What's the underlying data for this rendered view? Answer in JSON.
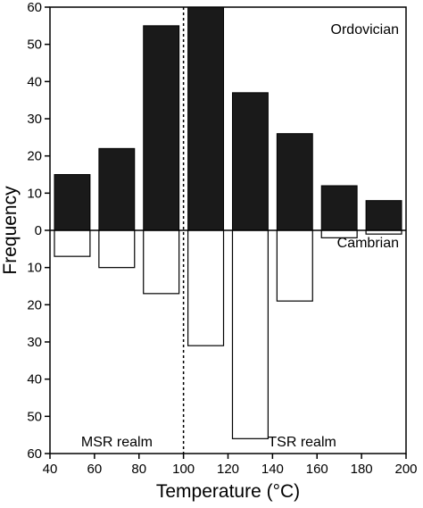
{
  "chart_data": {
    "type": "bar",
    "xlabel": "Temperature (°C)",
    "ylabel": "Frequency",
    "xlim": [
      40,
      200
    ],
    "x_ticks": [
      40,
      60,
      80,
      100,
      120,
      140,
      160,
      180,
      200
    ],
    "ylim": [
      -60,
      60
    ],
    "y_tick_values": [
      60,
      50,
      40,
      30,
      20,
      10,
      0,
      -10,
      -20,
      -30,
      -40,
      -50,
      -60
    ],
    "y_tick_labels": [
      "60",
      "50",
      "40",
      "30",
      "20",
      "10",
      "0",
      "10",
      "20",
      "30",
      "40",
      "50",
      "60"
    ],
    "x": [
      50,
      70,
      90,
      110,
      130,
      150,
      170,
      190
    ],
    "bar_width": 8,
    "series": [
      {
        "name": "Ordovician",
        "color": "#1a1a1a",
        "values": [
          15,
          22,
          55,
          60,
          37,
          26,
          12,
          8
        ]
      },
      {
        "name": "Cambrian",
        "color": "#ffffff",
        "values": [
          7,
          10,
          17,
          31,
          56,
          19,
          2,
          1
        ]
      }
    ],
    "divider_x": 100,
    "annotations": {
      "upper_label": "Ordovician",
      "lower_label": "Cambrian",
      "left_region": "MSR realm",
      "right_region": "TSR realm"
    }
  }
}
